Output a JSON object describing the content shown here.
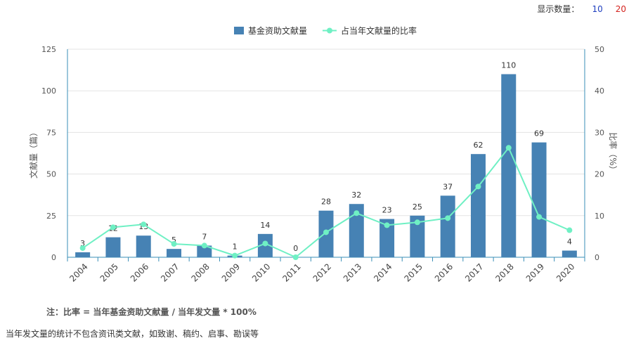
{
  "controls": {
    "label": "显示数量：",
    "options": [
      "10",
      "20"
    ],
    "colors": {
      "opt10": "#1f3fbf",
      "opt20": "#d4231f"
    }
  },
  "note": "注：比率 = 当年基金资助文献量 / 当年发文量 * 100%",
  "footer": "当年发文量的统计不包含资讯类文献，如致谢、稿约、启事、勘误等",
  "chart_data": {
    "type": "bar",
    "categories": [
      "2004",
      "2005",
      "2006",
      "2007",
      "2008",
      "2009",
      "2010",
      "2011",
      "2012",
      "2013",
      "2014",
      "2015",
      "2016",
      "2017",
      "2018",
      "2019",
      "2020"
    ],
    "series": [
      {
        "name": "基金资助文献量",
        "type": "bar",
        "axis": "left",
        "color": "#4682b4",
        "values": [
          3,
          12,
          13,
          5,
          7,
          1,
          14,
          0,
          28,
          32,
          23,
          25,
          37,
          62,
          110,
          69,
          4
        ],
        "labels": [
          "3",
          "12",
          "13",
          "5",
          "7",
          "1",
          "14",
          "0",
          "28",
          "32",
          "23",
          "25",
          "37",
          "62",
          "110",
          "69",
          "4"
        ]
      },
      {
        "name": "占当年文献量的比率",
        "type": "line",
        "axis": "right",
        "color": "#6ff0c4",
        "values": [
          2.2,
          7.2,
          7.9,
          3.2,
          2.8,
          0.4,
          3.3,
          0.0,
          6.0,
          10.6,
          7.7,
          8.4,
          9.4,
          17.0,
          26.3,
          9.7,
          6.5
        ]
      }
    ],
    "ylabel": "文献量（篇）",
    "y2label": "比率（%）",
    "ylim": [
      0,
      125
    ],
    "y2lim": [
      0,
      50
    ],
    "yticks": [
      0,
      25,
      50,
      75,
      100,
      125
    ],
    "y2ticks": [
      0,
      10,
      20,
      30,
      40,
      50
    ],
    "grid": true,
    "legend": "top-center"
  }
}
